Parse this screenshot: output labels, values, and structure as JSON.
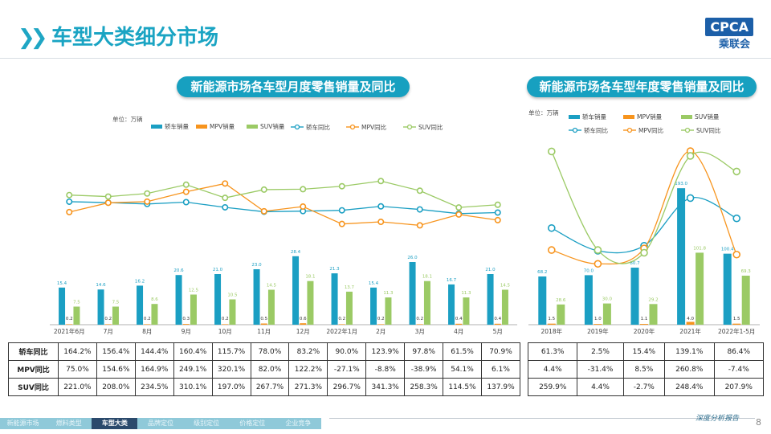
{
  "header": {
    "title": "车型大类细分市场",
    "logo_text": "CPCA",
    "logo_cn": "乘联会"
  },
  "left_panel": {
    "title": "新能源市场各车型月度零售销量及同比",
    "unit": "单位：万辆"
  },
  "right_panel": {
    "title": "新能源市场各车型年度零售销量及同比",
    "unit": "单位：万辆"
  },
  "legend": {
    "car_sales": "轿车销量",
    "mpv_sales": "MPV销量",
    "suv_sales": "SUV销量",
    "car_yoy": "轿车同比",
    "mpv_yoy": "MPV同比",
    "suv_yoy": "SUV同比"
  },
  "colors": {
    "car": "#1b9fc3",
    "mpv": "#f7941d",
    "suv": "#9bca65"
  },
  "chart_data": [
    {
      "type": "bar",
      "title": "新能源市场各车型月度零售销量及同比",
      "categories": [
        "2021年6月",
        "7月",
        "8月",
        "9月",
        "10月",
        "11月",
        "12月",
        "2022年1月",
        "2月",
        "3月",
        "4月",
        "5月"
      ],
      "series": [
        {
          "name": "轿车销量",
          "values": [
            15.4,
            14.6,
            16.2,
            20.6,
            21.0,
            23.0,
            28.4,
            21.3,
            15.4,
            26.0,
            16.7,
            21.0
          ]
        },
        {
          "name": "MPV销量",
          "values": [
            0.2,
            0.2,
            0.2,
            0.3,
            0.2,
            0.5,
            0.6,
            0.2,
            0.2,
            0.2,
            0.4,
            0.4
          ]
        },
        {
          "name": "SUV销量",
          "values": [
            7.5,
            7.5,
            8.6,
            12.5,
            10.5,
            14.5,
            18.1,
            13.7,
            11.3,
            18.1,
            11.3,
            14.5
          ]
        }
      ],
      "yoy_series": [
        {
          "name": "轿车同比",
          "values": [
            164.2,
            156.4,
            144.4,
            160.4,
            115.7,
            78.0,
            83.2,
            90.0,
            123.9,
            97.8,
            61.5,
            70.9
          ]
        },
        {
          "name": "MPV同比",
          "values": [
            75.0,
            154.6,
            164.9,
            249.1,
            320.1,
            82.0,
            122.2,
            -27.1,
            -8.8,
            -38.9,
            54.1,
            6.1
          ]
        },
        {
          "name": "SUV同比",
          "values": [
            221.0,
            208.0,
            234.5,
            310.1,
            197.0,
            267.7,
            271.3,
            296.7,
            341.3,
            258.3,
            114.5,
            137.9
          ]
        }
      ],
      "table_rows": [
        {
          "label": "轿车同比",
          "values": [
            "164.2%",
            "156.4%",
            "144.4%",
            "160.4%",
            "115.7%",
            "78.0%",
            "83.2%",
            "90.0%",
            "123.9%",
            "97.8%",
            "61.5%",
            "70.9%"
          ]
        },
        {
          "label": "MPV同比",
          "values": [
            "75.0%",
            "154.6%",
            "164.9%",
            "249.1%",
            "320.1%",
            "82.0%",
            "122.2%",
            "-27.1%",
            "-8.8%",
            "-38.9%",
            "54.1%",
            "6.1%"
          ]
        },
        {
          "label": "SUV同比",
          "values": [
            "221.0%",
            "208.0%",
            "234.5%",
            "310.1%",
            "197.0%",
            "267.7%",
            "271.3%",
            "296.7%",
            "341.3%",
            "258.3%",
            "114.5%",
            "137.9%"
          ]
        }
      ]
    },
    {
      "type": "bar",
      "title": "新能源市场各车型年度零售销量及同比",
      "categories": [
        "2018年",
        "2019年",
        "2020年",
        "2021年",
        "2022年1-5月"
      ],
      "series": [
        {
          "name": "轿车销量",
          "values": [
            68.2,
            70.0,
            80.7,
            193.0,
            100.4
          ]
        },
        {
          "name": "MPV销量",
          "values": [
            1.5,
            1.0,
            1.1,
            4.0,
            1.5
          ]
        },
        {
          "name": "SUV销量",
          "values": [
            28.6,
            30.0,
            29.2,
            101.8,
            69.3
          ]
        }
      ],
      "yoy_series": [
        {
          "name": "轿车同比",
          "values": [
            61.3,
            2.5,
            15.4,
            139.1,
            86.4
          ]
        },
        {
          "name": "MPV同比",
          "values": [
            4.4,
            -31.4,
            8.5,
            260.8,
            -7.4
          ]
        },
        {
          "name": "SUV同比",
          "values": [
            259.9,
            4.4,
            -2.7,
            248.4,
            207.9
          ]
        }
      ],
      "table_rows": [
        {
          "label": "",
          "values": [
            "61.3%",
            "2.5%",
            "15.4%",
            "139.1%",
            "86.4%"
          ]
        },
        {
          "label": "",
          "values": [
            "4.4%",
            "-31.4%",
            "8.5%",
            "260.8%",
            "-7.4%"
          ]
        },
        {
          "label": "",
          "values": [
            "259.9%",
            "4.4%",
            "-2.7%",
            "248.4%",
            "207.9%"
          ]
        }
      ]
    }
  ],
  "footer": {
    "tabs": [
      "新能源市场",
      "燃料类型",
      "车型大类",
      "品牌定位",
      "级别定位",
      "价格定位",
      "企业竞争"
    ],
    "active": 2,
    "note": "深度分析报告",
    "page": "8"
  }
}
